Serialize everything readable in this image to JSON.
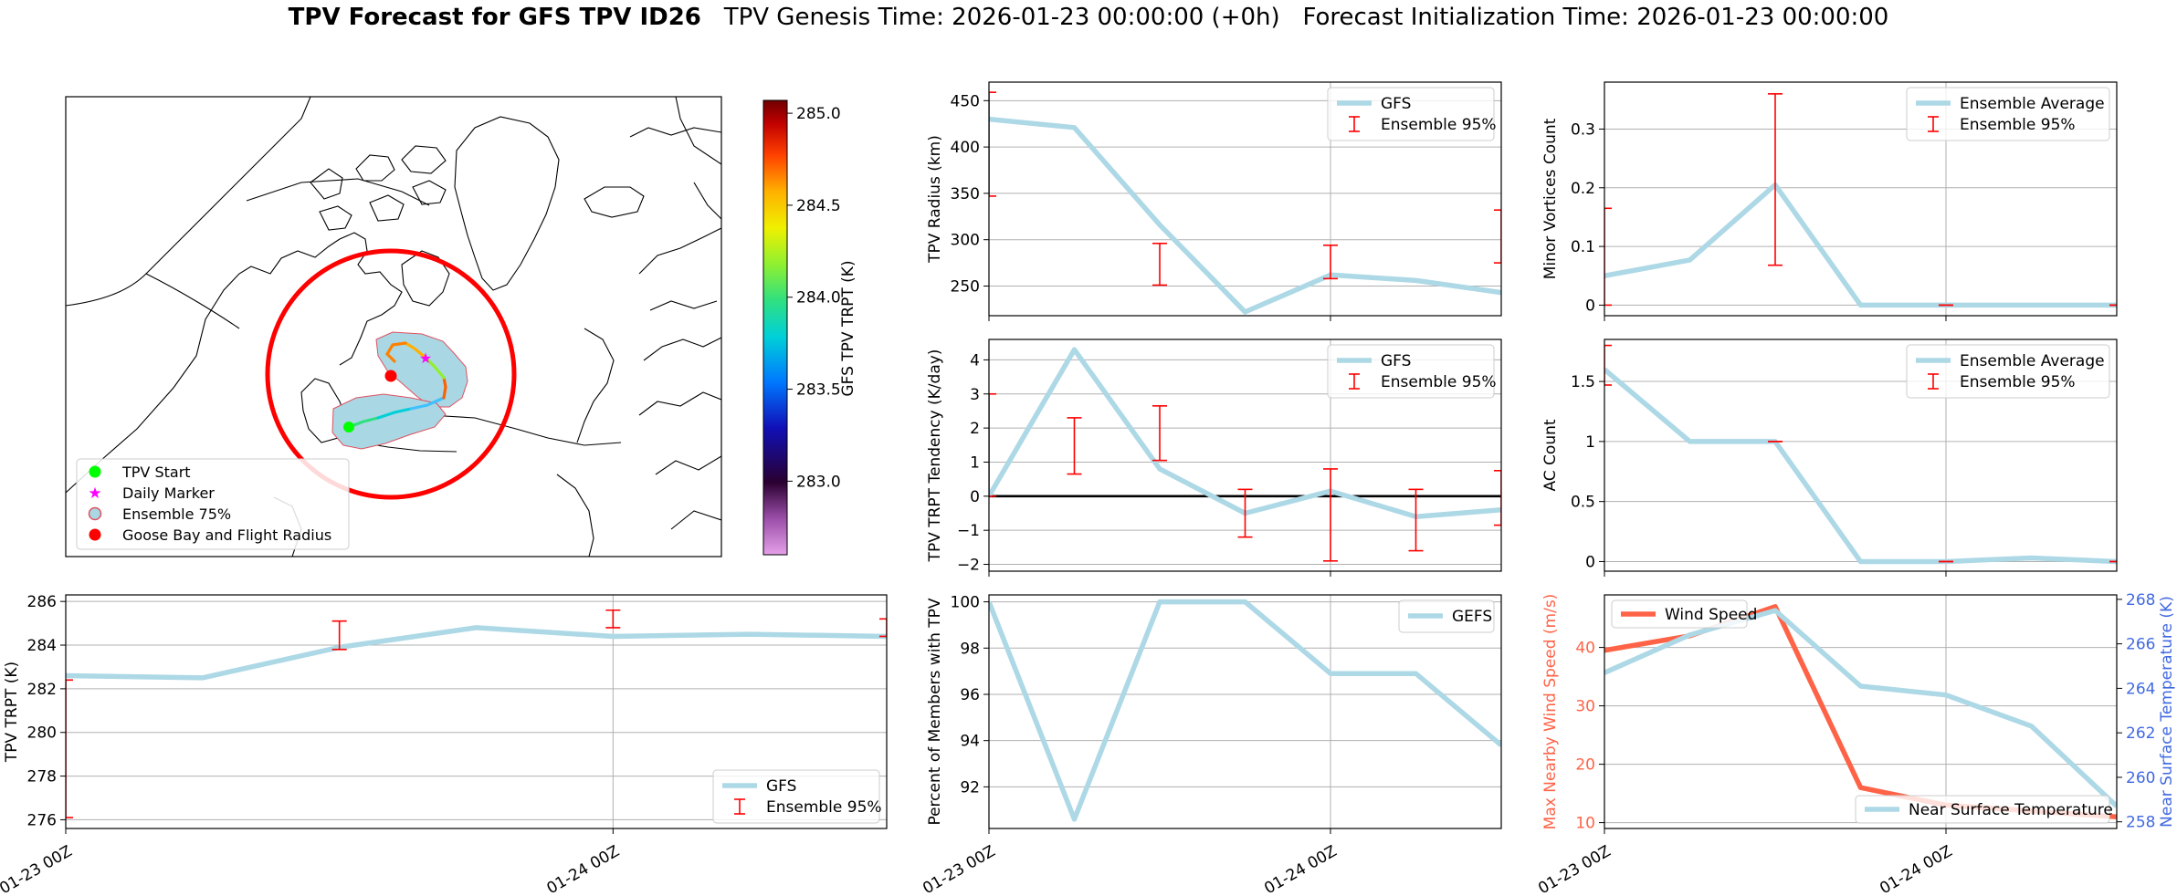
{
  "title": {
    "bold": "TPV Forecast for GFS TPV ID26",
    "genesis": "TPV Genesis Time: 2026-01-23 00:00:00 (+0h)",
    "init": "Forecast Initialization Time: 2026-01-23 00:00:00"
  },
  "colors": {
    "gfs_line": "#add8e6",
    "errorbar": "#ff0000",
    "wind": "#ff6347",
    "temp_axis": "#4169e1",
    "flight_circle": "#ff0000"
  },
  "time_ticks": [
    "01-23 00Z",
    "01-24 00Z"
  ],
  "map": {
    "legend": [
      {
        "label": "TPV Start",
        "icon": "green-dot-icon"
      },
      {
        "label": "Daily Marker",
        "icon": "magenta-star-icon"
      },
      {
        "label": "Ensemble 75%",
        "icon": "ensemble-patch-icon"
      },
      {
        "label": "Goose Bay and Flight Radius",
        "icon": "red-dot-icon"
      }
    ],
    "colorbar": {
      "label": "GFS TPV TRPT (K)",
      "min": 282.6,
      "max": 285.07,
      "ticks": [
        "283.0",
        "283.5",
        "284.0",
        "284.5",
        "285.0"
      ]
    }
  },
  "chart_data": [
    {
      "id": "radius",
      "type": "line",
      "ylabel": "TPV Radius (km)",
      "ylim": [
        218,
        470
      ],
      "yticks": [
        250,
        300,
        350,
        400,
        450
      ],
      "x": [
        0,
        6,
        12,
        18,
        24,
        30,
        36
      ],
      "series": [
        {
          "name": "GFS",
          "values": [
            430,
            421,
            316,
            222,
            262,
            256,
            243
          ]
        }
      ],
      "errorbars": [
        {
          "x": 0,
          "low": 347,
          "high": 459
        },
        {
          "x": 12,
          "low": 251,
          "high": 296
        },
        {
          "x": 24,
          "low": 258,
          "high": 294
        },
        {
          "x": 36,
          "low": 275,
          "high": 332
        }
      ],
      "legend": [
        "GFS",
        "Ensemble 95%"
      ],
      "legend_position": "upper right"
    },
    {
      "id": "minor",
      "type": "line",
      "ylabel": "Minor Vortices Count",
      "ylim": [
        -0.018,
        0.38
      ],
      "yticks": [
        0.0,
        0.1,
        0.2,
        0.3
      ],
      "x": [
        0,
        6,
        12,
        18,
        24,
        30,
        36
      ],
      "series": [
        {
          "name": "Ensemble Average",
          "values": [
            0.05,
            0.077,
            0.205,
            0.0,
            0.0,
            0.0,
            0.0
          ]
        }
      ],
      "errorbars": [
        {
          "x": 0,
          "low": 0.0,
          "high": 0.165
        },
        {
          "x": 12,
          "low": 0.068,
          "high": 0.36
        },
        {
          "x": 24,
          "low": 0.0,
          "high": 0.0
        },
        {
          "x": 36,
          "low": 0.0,
          "high": 0.0
        }
      ],
      "legend": [
        "Ensemble Average",
        "Ensemble 95%"
      ],
      "legend_position": "upper right"
    },
    {
      "id": "tendency",
      "type": "line",
      "ylabel": "TPV TRPT Tendency (K/day)",
      "ylim": [
        -2.2,
        4.6
      ],
      "yticks": [
        -2,
        -1,
        0,
        1,
        2,
        3,
        4
      ],
      "zero_line": true,
      "x": [
        0,
        6,
        12,
        18,
        24,
        30,
        36
      ],
      "series": [
        {
          "name": "GFS",
          "values": [
            0.0,
            4.3,
            0.8,
            -0.5,
            0.15,
            -0.6,
            -0.4
          ]
        }
      ],
      "errorbars": [
        {
          "x": 0,
          "low": 0.0,
          "high": 3.0
        },
        {
          "x": 6,
          "low": 0.65,
          "high": 2.3
        },
        {
          "x": 12,
          "low": 1.05,
          "high": 2.65
        },
        {
          "x": 18,
          "low": -1.2,
          "high": 0.2
        },
        {
          "x": 24,
          "low": -1.9,
          "high": 0.8
        },
        {
          "x": 30,
          "low": -1.6,
          "high": 0.2
        },
        {
          "x": 36,
          "low": -0.85,
          "high": 0.75
        }
      ],
      "legend": [
        "GFS",
        "Ensemble 95%"
      ],
      "legend_position": "upper right"
    },
    {
      "id": "ac",
      "type": "line",
      "ylabel": "AC Count",
      "ylim": [
        -0.08,
        1.85
      ],
      "yticks": [
        0.0,
        0.5,
        1.0,
        1.5
      ],
      "x": [
        0,
        6,
        12,
        18,
        24,
        30,
        36
      ],
      "series": [
        {
          "name": "Ensemble Average",
          "values": [
            1.6,
            1.0,
            1.0,
            0.0,
            0.0,
            0.03,
            0.0
          ]
        }
      ],
      "errorbars": [
        {
          "x": 0,
          "low": 1.47,
          "high": 1.8
        },
        {
          "x": 12,
          "low": 1.0,
          "high": 1.0
        },
        {
          "x": 24,
          "low": 0.0,
          "high": 0.0
        },
        {
          "x": 36,
          "low": 0.0,
          "high": 0.0
        }
      ],
      "legend": [
        "Ensemble Average",
        "Ensemble 95%"
      ],
      "legend_position": "upper right"
    },
    {
      "id": "trpt",
      "type": "line",
      "ylabel": "TPV TRPT (K)",
      "ylim": [
        275.6,
        286.3
      ],
      "yticks": [
        276,
        278,
        280,
        282,
        284,
        286
      ],
      "x": [
        0,
        6,
        12,
        18,
        24,
        30,
        36
      ],
      "series": [
        {
          "name": "GFS",
          "values": [
            282.6,
            282.5,
            283.9,
            284.8,
            284.4,
            284.5,
            284.4
          ]
        }
      ],
      "errorbars": [
        {
          "x": 0,
          "low": 276.1,
          "high": 282.4
        },
        {
          "x": 12,
          "low": 283.8,
          "high": 285.1
        },
        {
          "x": 24,
          "low": 284.8,
          "high": 285.6
        },
        {
          "x": 36,
          "low": 284.4,
          "high": 285.2
        }
      ],
      "legend": [
        "GFS",
        "Ensemble 95%"
      ],
      "legend_position": "lower right"
    },
    {
      "id": "percent",
      "type": "line",
      "ylabel": "Percent of Members with TPV",
      "ylim": [
        90.2,
        100.3
      ],
      "yticks": [
        92,
        94,
        96,
        98,
        100
      ],
      "x": [
        0,
        6,
        12,
        18,
        24,
        30,
        36
      ],
      "series": [
        {
          "name": "GEFS",
          "values": [
            100,
            90.6,
            100,
            100,
            96.9,
            96.9,
            93.8
          ]
        }
      ],
      "errorbars": [],
      "legend": [
        "GEFS"
      ],
      "legend_position": "upper right"
    },
    {
      "id": "wind_temp",
      "type": "line",
      "ylabel": "Max Nearby Wind Speed (m/s)",
      "ylabel_right": "Near Surface Temperature (K)",
      "ylim": [
        9,
        49
      ],
      "yticks": [
        10,
        20,
        30,
        40
      ],
      "ylim_right": [
        257.7,
        268.2
      ],
      "yticks_right": [
        258,
        260,
        262,
        264,
        266,
        268
      ],
      "x": [
        0,
        6,
        12,
        18,
        24,
        30,
        36
      ],
      "series": [
        {
          "name": "Wind Speed",
          "values": [
            39.5,
            42,
            47,
            16,
            13,
            12,
            11
          ],
          "axis": "left"
        },
        {
          "name": "Near Surface Temperature",
          "values": [
            264.7,
            266.4,
            267.5,
            264.1,
            263.7,
            262.3,
            258.7
          ],
          "axis": "right"
        }
      ],
      "errorbars": [],
      "legend": [
        "Wind Speed",
        "Near Surface Temperature"
      ]
    }
  ]
}
